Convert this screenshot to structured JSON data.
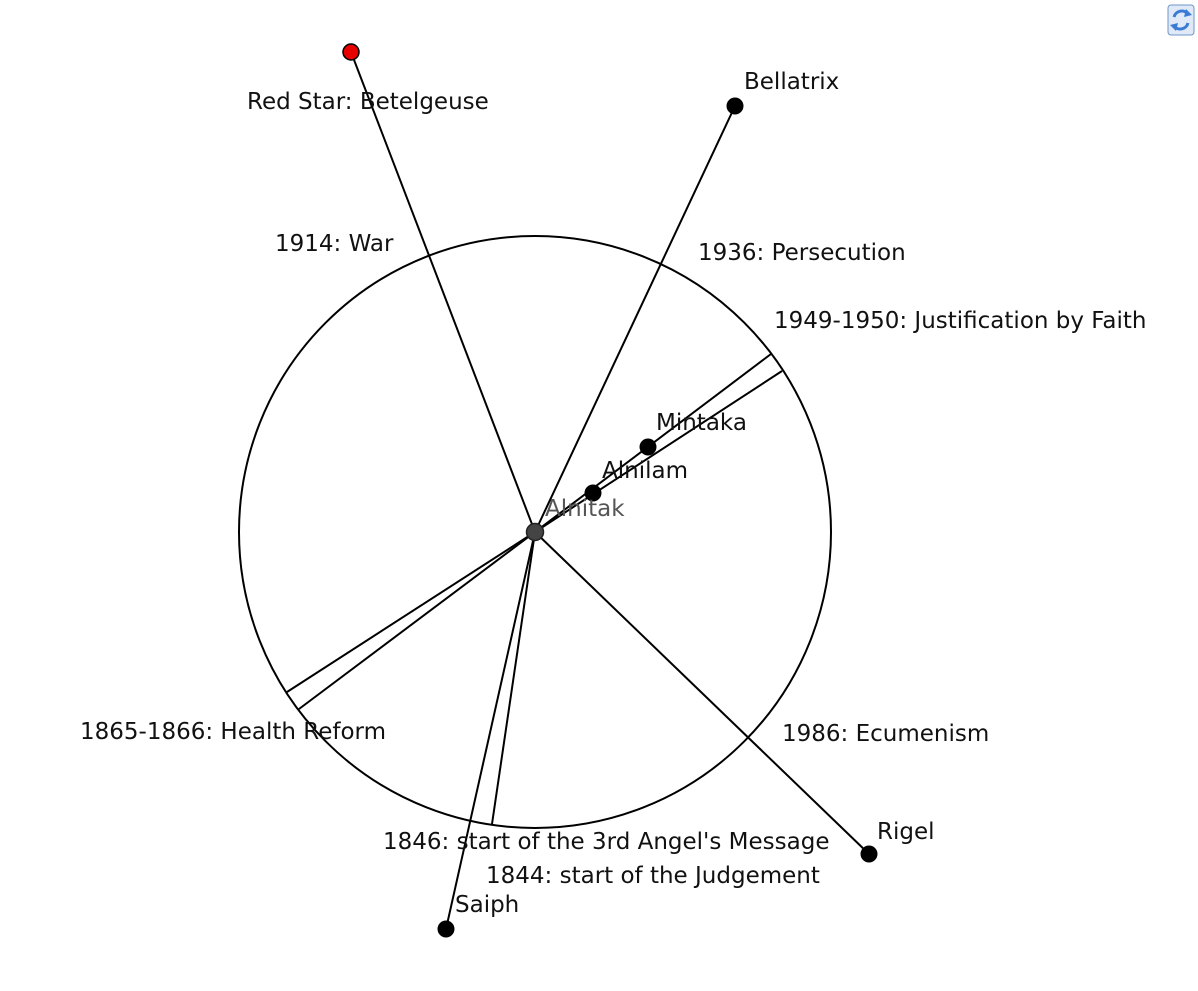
{
  "diagram": {
    "center_star": "Alnitak",
    "stars": [
      {
        "name": "Betelgeuse",
        "label": "Red Star: Betelgeuse",
        "color": "#e60000"
      },
      {
        "name": "Bellatrix",
        "label": "Bellatrix",
        "color": "#000000"
      },
      {
        "name": "Mintaka",
        "label": "Mintaka",
        "color": "#000000"
      },
      {
        "name": "Alnilam",
        "label": "Alnilam",
        "color": "#000000"
      },
      {
        "name": "Rigel",
        "label": "Rigel",
        "color": "#000000"
      },
      {
        "name": "Saiph",
        "label": "Saiph",
        "color": "#000000"
      }
    ],
    "events": [
      "1914: War",
      "1936: Persecution",
      "1949-1950: Justification by Faith",
      "1865-1866: Health Reform",
      "1986: Ecumenism",
      "1846: start of the 3rd Angel's Message",
      "1844: start of the Judgement"
    ],
    "center_color": "#444444",
    "line_color": "#000000"
  },
  "toolbar": {
    "refresh_icon": "refresh-icon",
    "icon_color": "#3a7bd5"
  }
}
